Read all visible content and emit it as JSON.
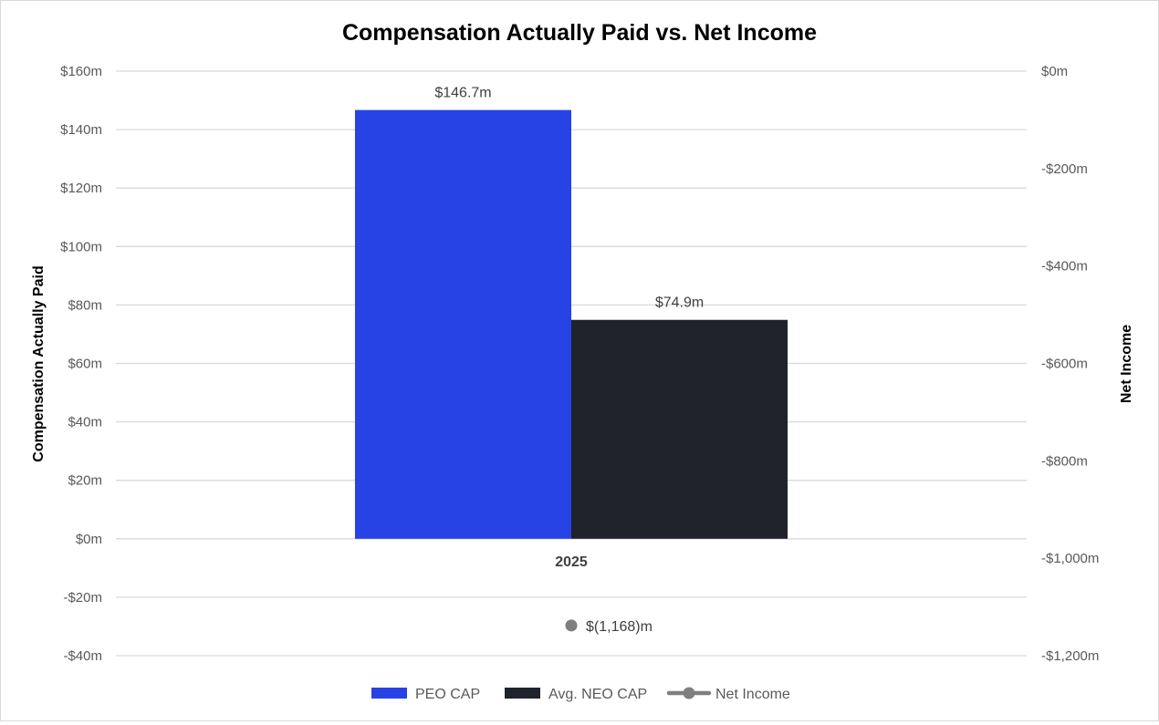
{
  "chart_data": {
    "type": "bar",
    "title": "Compensation Actually Paid vs. Net Income",
    "categories": [
      "2025"
    ],
    "series": [
      {
        "name": "PEO CAP",
        "type": "bar",
        "axis": "left",
        "values": [
          146.7
        ],
        "labels": [
          "$146.7m"
        ],
        "color": "#2743e5"
      },
      {
        "name": "Avg. NEO CAP",
        "type": "bar",
        "axis": "left",
        "values": [
          74.9
        ],
        "labels": [
          "$74.9m"
        ],
        "color": "#1f232b"
      },
      {
        "name": "Net Income",
        "type": "line",
        "axis": "right",
        "values": [
          -1168
        ],
        "labels": [
          "$(1,168)m"
        ],
        "color": "#7f7f7f"
      }
    ],
    "ylabel": "Compensation Actually Paid",
    "y2label": "Net Income",
    "ylim": [
      -40,
      160
    ],
    "y2lim": [
      -1200,
      0
    ],
    "yticks": [
      160,
      140,
      120,
      100,
      80,
      60,
      40,
      20,
      0,
      -20,
      -40
    ],
    "ytick_labels": [
      "$160m",
      "$140m",
      "$120m",
      "$100m",
      "$80m",
      "$60m",
      "$40m",
      "$20m",
      "$0m",
      "-$20m",
      "-$40m"
    ],
    "y2ticks": [
      0,
      -200,
      -400,
      -600,
      -800,
      -1000,
      -1200
    ],
    "y2tick_labels": [
      "$0m",
      "-$200m",
      "-$400m",
      "-$600m",
      "-$800m",
      "-$1,000m",
      "-$1,200m"
    ],
    "grid": true,
    "legend_position": "bottom"
  }
}
